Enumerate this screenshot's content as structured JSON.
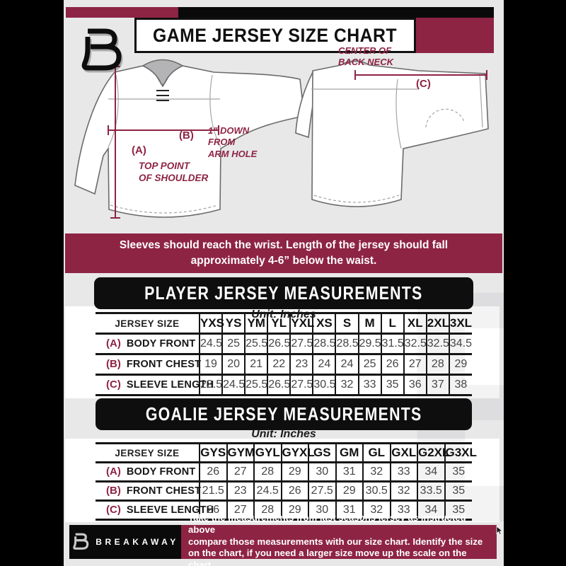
{
  "header": {
    "title": "GAME JERSEY SIZE CHART",
    "logo_letter": "B"
  },
  "diagram": {
    "front": {
      "label_a": "(A)",
      "note_a": "TOP POINT\nOF SHOULDER",
      "label_b": "(B)",
      "note_b": "1\" DOWN\nFROM\nARM HOLE"
    },
    "back": {
      "label_c": "(C)",
      "note_c": "CENTER OF\nBACK NECK"
    }
  },
  "banner": {
    "text": "Sleeves should reach the wrist. Length of the jersey should fall\napproximately 4-6” below the waist."
  },
  "player_section": {
    "heading": "PLAYER JERSEY MEASUREMENTS",
    "unit": "Unit: Inches",
    "table": {
      "corner_label": "JERSEY SIZE",
      "columns": [
        "YXS",
        "YS",
        "YM",
        "YL",
        "YXL",
        "XS",
        "S",
        "M",
        "L",
        "XL",
        "2XL",
        "3XL"
      ],
      "rows": [
        {
          "key": "(A)",
          "label": "BODY FRONT",
          "values": [
            "24.5",
            "25",
            "25.5",
            "26.5",
            "27.5",
            "28.5",
            "28.5",
            "29.5",
            "31.5",
            "32.5",
            "32.5",
            "34.5"
          ]
        },
        {
          "key": "(B)",
          "label": "FRONT CHEST",
          "values": [
            "19",
            "20",
            "21",
            "22",
            "23",
            "24",
            "24",
            "25",
            "26",
            "27",
            "28",
            "29"
          ]
        },
        {
          "key": "(C)",
          "label": "SLEEVE LENGTH",
          "values": [
            "23.5",
            "24.5",
            "25.5",
            "26.5",
            "27.5",
            "30.5",
            "32",
            "33",
            "35",
            "36",
            "37",
            "38"
          ]
        }
      ]
    }
  },
  "goalie_section": {
    "heading": "GOALIE JERSEY MEASUREMENTS",
    "unit": "Unit: Inches",
    "table": {
      "corner_label": "JERSEY SIZE",
      "columns": [
        "GYS",
        "GYM",
        "GYL",
        "GYXL",
        "GS",
        "GM",
        "GL",
        "GXL",
        "G2XL",
        "G3XL"
      ],
      "rows": [
        {
          "key": "(A)",
          "label": "BODY FRONT",
          "values": [
            "26",
            "27",
            "28",
            "29",
            "30",
            "31",
            "32",
            "33",
            "34",
            "35"
          ]
        },
        {
          "key": "(B)",
          "label": "FRONT CHEST",
          "values": [
            "21.5",
            "23",
            "24.5",
            "26",
            "27.5",
            "29",
            "30.5",
            "32",
            "33.5",
            "35"
          ]
        },
        {
          "key": "(C)",
          "label": "SLEEVE LENGTH",
          "values": [
            "26",
            "27",
            "28",
            "29",
            "30",
            "31",
            "32",
            "33",
            "34",
            "35"
          ]
        }
      ]
    }
  },
  "footer": {
    "brand": "BREAKAWAY",
    "logo_letter": "B",
    "note": "Take the measurements from last seasons jersey as instructed above\ncompare those measurements  with our size chart. Identify the size\non the chart, if you need a larger size move up the scale on the chart"
  },
  "watermark_letter": "B",
  "colors": {
    "maroon": "#8e2444",
    "black": "#0a0a0a",
    "background_gray": "#e8e8e9",
    "white": "#ffffff"
  }
}
